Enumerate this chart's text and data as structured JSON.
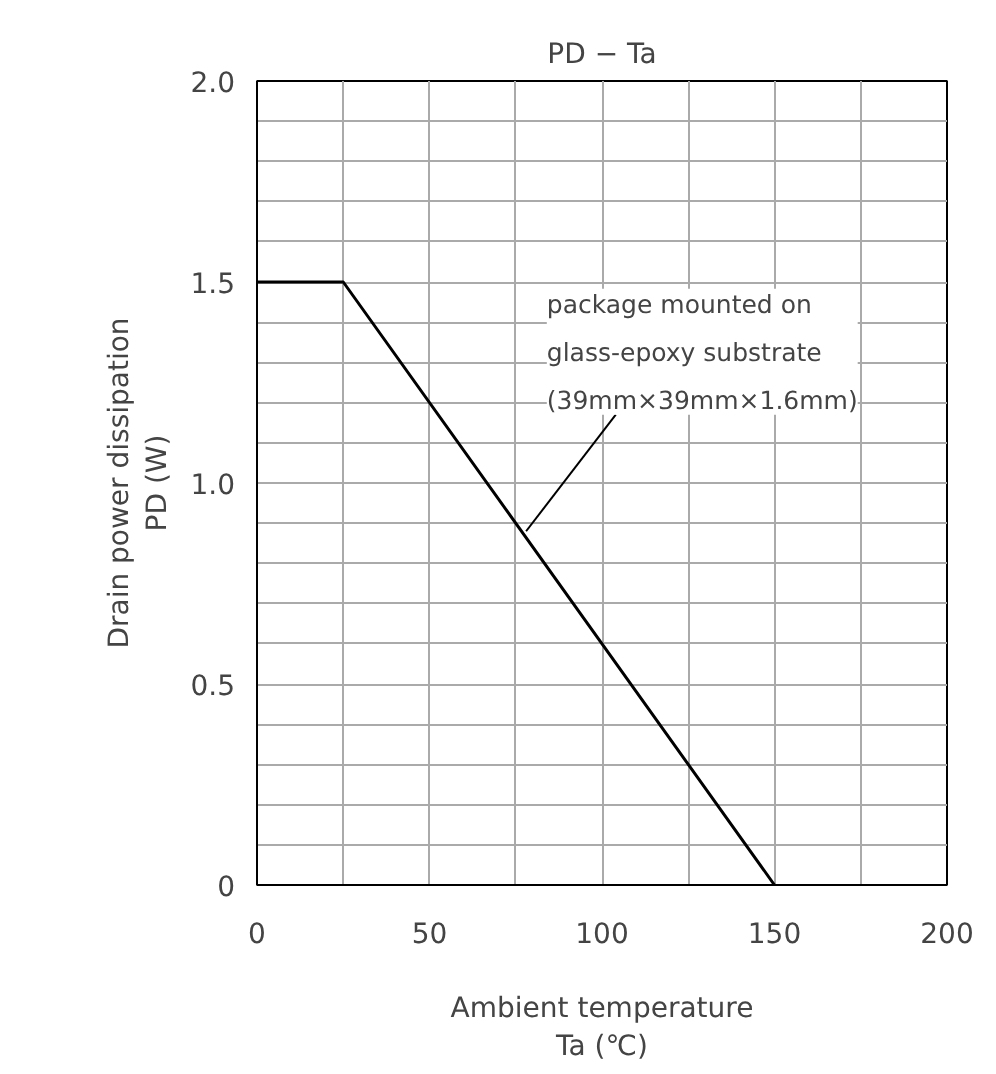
{
  "chart_data": {
    "type": "line",
    "title": "PD − Ta",
    "xlabel": "Ambient temperature\nTa (℃)",
    "ylabel": "Drain power dissipation\nPD (W)",
    "x": [
      0,
      25,
      150
    ],
    "series": [
      {
        "color": "#000000",
        "values": [
          1.5,
          1.5,
          0
        ]
      }
    ],
    "xlim": [
      0,
      200
    ],
    "ylim": [
      0,
      2.0
    ],
    "xticks": [
      0,
      {
        "value": 25,
        "label": null
      },
      50,
      {
        "value": 75,
        "label": null
      },
      100,
      {
        "value": 125,
        "label": null
      },
      150,
      {
        "value": 175,
        "label": null
      },
      200
    ],
    "yticks": [
      0,
      {
        "value": 0.1,
        "label": null
      },
      {
        "value": 0.2,
        "label": null
      },
      {
        "value": 0.3,
        "label": null
      },
      {
        "value": 0.4,
        "label": null
      },
      {
        "value": 0.5,
        "label": "0.5"
      },
      {
        "value": 0.6,
        "label": null
      },
      {
        "value": 0.7,
        "label": null
      },
      {
        "value": 0.8,
        "label": null
      },
      {
        "value": 0.9,
        "label": null
      },
      {
        "value": 1.0,
        "label": "1.0"
      },
      {
        "value": 1.1,
        "label": null
      },
      {
        "value": 1.2,
        "label": null
      },
      {
        "value": 1.3,
        "label": null
      },
      {
        "value": 1.4,
        "label": null
      },
      {
        "value": 1.5,
        "label": "1.5"
      },
      {
        "value": 1.6,
        "label": null
      },
      {
        "value": 1.7,
        "label": null
      },
      {
        "value": 1.8,
        "label": null
      },
      {
        "value": 1.9,
        "label": null
      },
      {
        "value": 2.0,
        "label": "2.0"
      }
    ],
    "grid": true,
    "marker": "none",
    "line_style": "solid",
    "annotations": [
      {
        "text": "package mounted on\nglass-epoxy substrate\n(39mm×39mm×1.6mm)",
        "x": 78,
        "y": 0.88
      }
    ]
  }
}
